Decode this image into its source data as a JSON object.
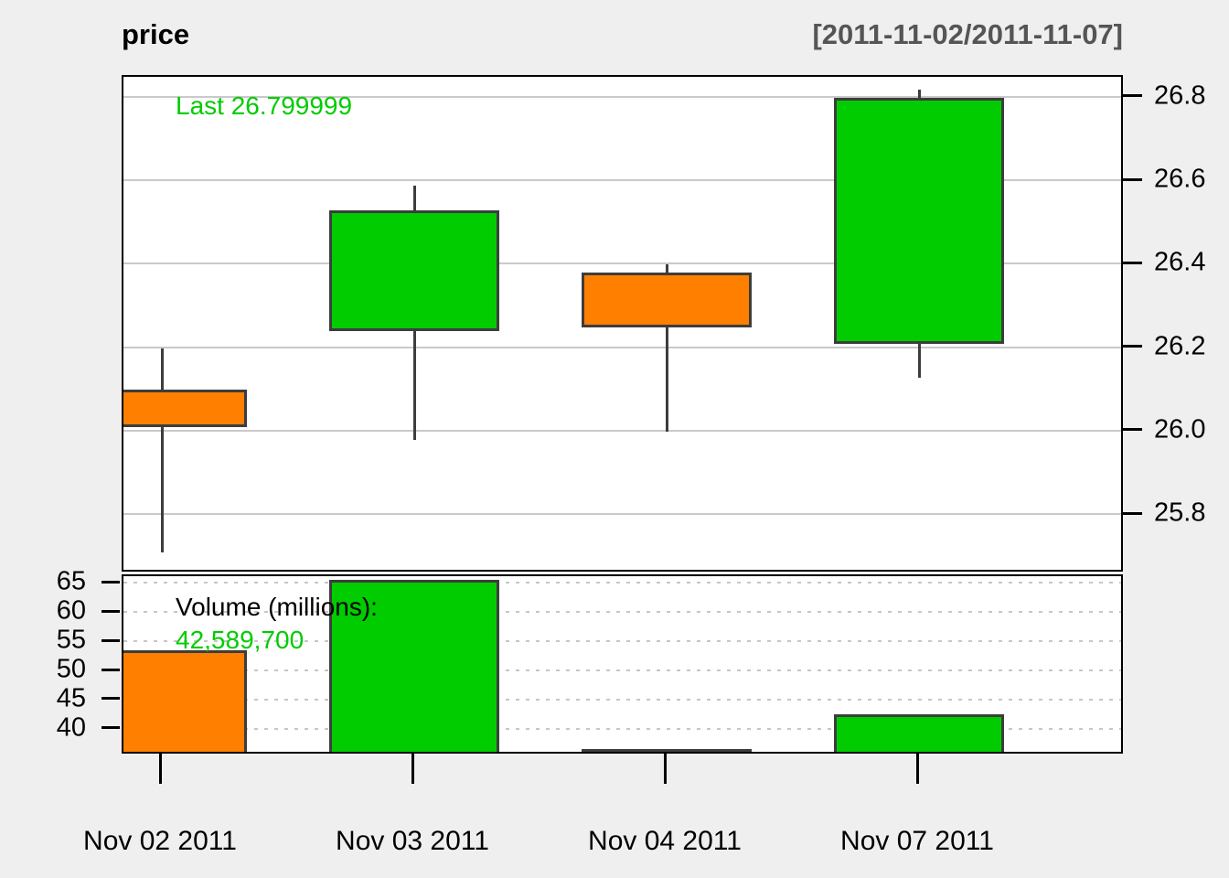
{
  "title": "price",
  "date_range": "[2011-11-02/2011-11-07]",
  "annotations": {
    "last_label": "Last 26.799999",
    "volume_label": "Volume (millions):",
    "volume_value": "42,589,700"
  },
  "colors": {
    "up": "#00cc00",
    "down": "#ff7f00",
    "candle_border": "#3d3d3d",
    "background": "#efefef",
    "panel_background": "#ffffff",
    "solid_grid": "#c9c9c9",
    "dotted_grid": "#c6c6c6",
    "subtitle_text": "#555555",
    "green_text": "#00cc00"
  },
  "chart_data": {
    "type": "candlestick_with_volume",
    "title": "price",
    "subtitle": "[2011-11-02/2011-11-07]",
    "x_labels": [
      "Nov 02 2011",
      "Nov 03 2011",
      "Nov 04 2011",
      "Nov 07 2011"
    ],
    "price_panel": {
      "ylim": [
        25.66,
        26.85
      ],
      "yticks": [
        26.8,
        26.6,
        26.4,
        26.2,
        26.0,
        25.8
      ],
      "ytick_labels": [
        "26.8",
        "26.6",
        "26.4",
        "26.2",
        "26.0",
        "25.8"
      ],
      "grid": "solid",
      "last": 26.799999,
      "series": [
        {
          "date": "Nov 02 2011",
          "open": 26.1,
          "high": 26.2,
          "low": 25.71,
          "close": 26.01,
          "direction": "down"
        },
        {
          "date": "Nov 03 2011",
          "open": 26.24,
          "high": 26.59,
          "low": 25.98,
          "close": 26.53,
          "direction": "up"
        },
        {
          "date": "Nov 04 2011",
          "open": 26.38,
          "high": 26.4,
          "low": 26.0,
          "close": 26.25,
          "direction": "down"
        },
        {
          "date": "Nov 07 2011",
          "open": 26.21,
          "high": 26.82,
          "low": 26.13,
          "close": 26.8,
          "direction": "up"
        }
      ]
    },
    "volume_panel": {
      "unit": "millions",
      "ylim": [
        35.6,
        66.3
      ],
      "yticks": [
        65,
        60,
        55,
        50,
        45,
        40
      ],
      "ytick_labels": [
        "65",
        "60",
        "55",
        "50",
        "45",
        "40"
      ],
      "grid": "dotted",
      "values": [
        53.6,
        65.6,
        36.7,
        42.6
      ],
      "directions": [
        "down",
        "up",
        "down",
        "up"
      ],
      "last_volume_text": "42,589,700"
    }
  }
}
